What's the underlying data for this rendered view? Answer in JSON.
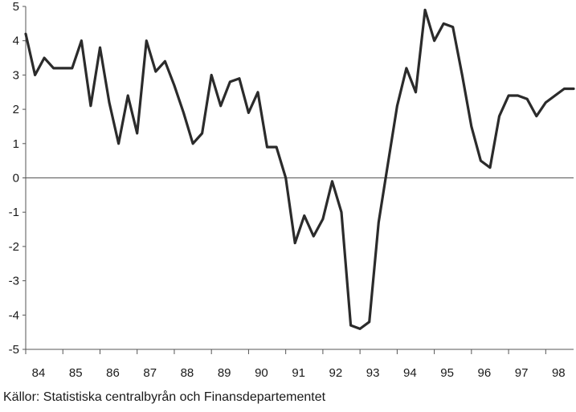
{
  "chart_data": {
    "type": "line",
    "title": "",
    "xlabel": "",
    "ylabel": "",
    "ylim": [
      -5,
      5
    ],
    "y_ticks": [
      5,
      4,
      3,
      2,
      1,
      0,
      -1,
      -2,
      -3,
      -4,
      -5
    ],
    "y_tick_labels": [
      "5",
      "4",
      "3",
      "2",
      "1",
      "0",
      "-1",
      "-2",
      "-3",
      "-4",
      "-5"
    ],
    "x_ticks": [
      1984,
      1985,
      1986,
      1987,
      1988,
      1989,
      1990,
      1991,
      1992,
      1993,
      1994,
      1995,
      1996,
      1997,
      1998
    ],
    "x_tick_labels": [
      "84",
      "85",
      "86",
      "87",
      "88",
      "89",
      "90",
      "91",
      "92",
      "93",
      "94",
      "95",
      "96",
      "97",
      "98"
    ],
    "xlim": [
      1984,
      1998.75
    ],
    "grid": false,
    "zero_line": true,
    "line_color": "#2b2b2b",
    "series": [
      {
        "x": [
          1984.0,
          1984.25,
          1984.5,
          1984.75,
          1985.0,
          1985.25,
          1985.5,
          1985.75,
          1986.0,
          1986.25,
          1986.5,
          1986.75,
          1987.0,
          1987.25,
          1987.5,
          1987.75,
          1988.0,
          1988.25,
          1988.5,
          1988.75,
          1989.0,
          1989.25,
          1989.5,
          1989.75,
          1990.0,
          1990.25,
          1990.5,
          1990.75,
          1991.0,
          1991.25,
          1991.5,
          1991.75,
          1992.0,
          1992.25,
          1992.5,
          1992.75,
          1993.0,
          1993.25,
          1993.5,
          1993.75,
          1994.0,
          1994.25,
          1994.5,
          1994.75,
          1995.0,
          1995.25,
          1995.5,
          1995.75,
          1996.0,
          1996.25,
          1996.5,
          1996.75,
          1997.0,
          1997.25,
          1997.5,
          1997.75,
          1998.0,
          1998.25,
          1998.5,
          1998.75
        ],
        "values": [
          4.2,
          3.0,
          3.5,
          3.2,
          3.2,
          3.2,
          4.0,
          2.1,
          3.8,
          2.2,
          1.0,
          2.4,
          1.3,
          4.0,
          3.1,
          3.4,
          2.7,
          1.9,
          1.0,
          1.3,
          3.0,
          2.1,
          2.8,
          2.9,
          1.9,
          2.5,
          0.9,
          0.9,
          0.0,
          -1.9,
          -1.1,
          -1.7,
          -1.2,
          -0.1,
          -1.0,
          -4.3,
          -4.4,
          -4.2,
          -1.3,
          0.4,
          2.1,
          3.2,
          2.5,
          4.9,
          4.0,
          4.5,
          4.4,
          3.0,
          1.5,
          0.5,
          0.3,
          1.8,
          2.4,
          2.4,
          2.3,
          1.8,
          2.2,
          2.4,
          2.6,
          2.6
        ]
      }
    ]
  },
  "source": {
    "text": "Källor: Statistiska centralbyrån och Finansdepartementet"
  }
}
